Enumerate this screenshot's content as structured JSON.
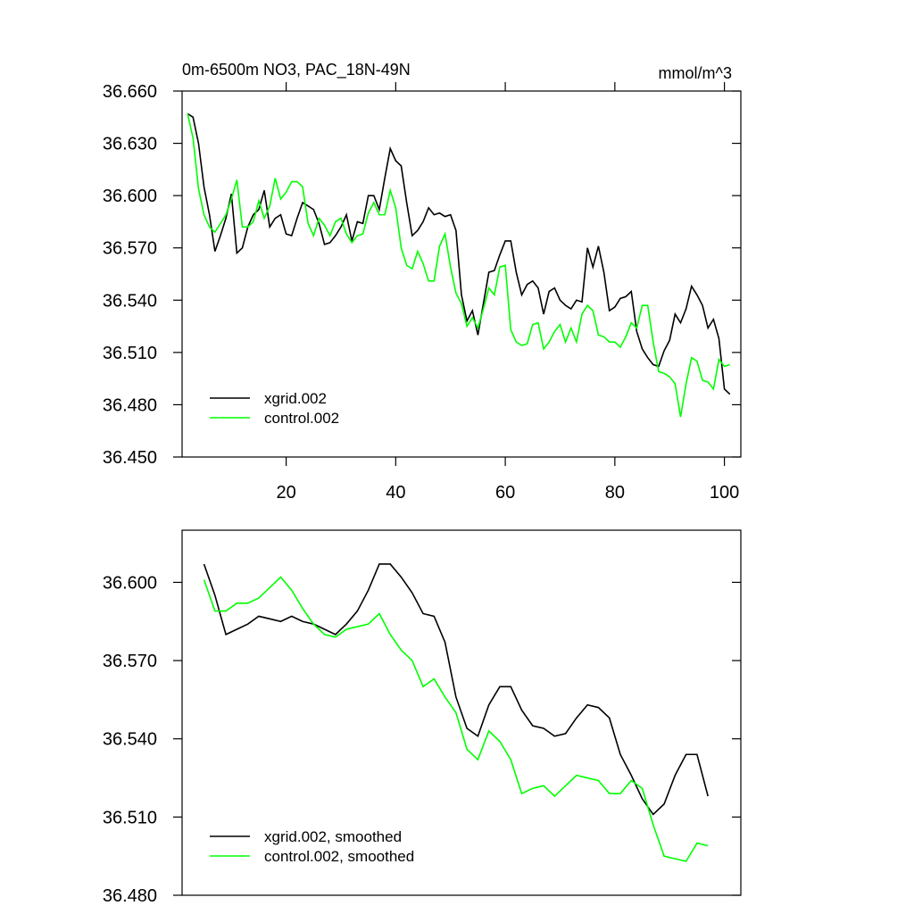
{
  "chart_data": [
    {
      "type": "line",
      "title": "0m-6500m NO3, PAC_18N-49N",
      "units": "mmol/m^3",
      "x": [
        2,
        3,
        4,
        5,
        6,
        7,
        8,
        9,
        10,
        11,
        12,
        13,
        14,
        15,
        16,
        17,
        18,
        19,
        20,
        21,
        22,
        23,
        24,
        25,
        26,
        27,
        28,
        29,
        30,
        31,
        32,
        33,
        34,
        35,
        36,
        37,
        38,
        39,
        40,
        41,
        42,
        43,
        44,
        45,
        46,
        47,
        48,
        49,
        50,
        51,
        52,
        53,
        54,
        55,
        56,
        57,
        58,
        59,
        60,
        61,
        62,
        63,
        64,
        65,
        66,
        67,
        68,
        69,
        70,
        71,
        72,
        73,
        74,
        75,
        76,
        77,
        78,
        79,
        80,
        81,
        82,
        83,
        84,
        85,
        86,
        87,
        88,
        89,
        90,
        91,
        92,
        93,
        94,
        95,
        96,
        97,
        98,
        99,
        100,
        101
      ],
      "series": [
        {
          "name": "xgrid.002",
          "color": "#000000",
          "values": [
            36.647,
            36.645,
            36.63,
            36.605,
            36.589,
            36.568,
            36.577,
            36.587,
            36.601,
            36.567,
            36.57,
            36.582,
            36.589,
            36.592,
            36.603,
            36.582,
            36.587,
            36.589,
            36.578,
            36.577,
            36.587,
            36.596,
            36.594,
            36.592,
            36.584,
            36.572,
            36.573,
            36.577,
            36.582,
            36.589,
            36.574,
            36.585,
            36.584,
            36.6,
            36.6,
            36.592,
            36.61,
            36.627,
            36.62,
            36.617,
            36.596,
            36.577,
            36.58,
            36.585,
            36.593,
            36.589,
            36.59,
            36.588,
            36.589,
            36.58,
            36.543,
            36.528,
            36.534,
            36.52,
            36.538,
            36.556,
            36.557,
            36.566,
            36.574,
            36.574,
            36.556,
            36.543,
            36.549,
            36.551,
            36.547,
            36.532,
            36.545,
            36.547,
            36.54,
            36.537,
            36.535,
            36.54,
            36.539,
            36.57,
            36.559,
            36.571,
            36.556,
            36.534,
            36.536,
            36.541,
            36.542,
            36.545,
            36.522,
            36.512,
            36.507,
            36.503,
            36.502,
            36.511,
            36.517,
            36.532,
            36.527,
            36.535,
            36.548,
            36.543,
            36.537,
            36.524,
            36.529,
            36.518,
            36.489,
            36.486
          ]
        },
        {
          "name": "control.002",
          "color": "#00ff00",
          "values": [
            36.647,
            36.633,
            36.604,
            36.589,
            36.582,
            36.579,
            36.584,
            36.589,
            36.598,
            36.609,
            36.582,
            36.582,
            36.585,
            36.597,
            36.587,
            36.594,
            36.61,
            36.598,
            36.602,
            36.608,
            36.608,
            36.605,
            36.584,
            36.577,
            36.587,
            36.583,
            36.577,
            36.585,
            36.587,
            36.578,
            36.573,
            36.577,
            36.578,
            36.59,
            36.596,
            36.589,
            36.589,
            36.603,
            36.593,
            36.57,
            36.56,
            36.558,
            36.568,
            36.561,
            36.551,
            36.551,
            36.571,
            36.578,
            36.559,
            36.544,
            36.538,
            36.525,
            36.53,
            36.524,
            36.535,
            36.547,
            36.543,
            36.559,
            36.56,
            36.523,
            36.516,
            36.514,
            36.515,
            36.526,
            36.527,
            36.512,
            36.516,
            36.522,
            36.526,
            36.516,
            36.524,
            36.516,
            36.532,
            36.537,
            36.534,
            36.52,
            36.519,
            36.516,
            36.516,
            36.513,
            36.519,
            36.527,
            36.524,
            36.537,
            36.537,
            36.516,
            36.499,
            36.498,
            36.496,
            36.492,
            36.473,
            36.492,
            36.507,
            36.505,
            36.494,
            36.493,
            36.489,
            36.506,
            36.502,
            36.503
          ]
        }
      ],
      "xlim": [
        1,
        103
      ],
      "xticks": [
        20,
        40,
        60,
        80,
        100
      ],
      "ylim": [
        36.45,
        36.66
      ],
      "yticks": [
        {
          "value": 36.45,
          "label": "36.450"
        },
        {
          "value": 36.48,
          "label": "36.480"
        },
        {
          "value": 36.51,
          "label": "36.510"
        },
        {
          "value": 36.54,
          "label": "36.540"
        },
        {
          "value": 36.57,
          "label": "36.570"
        },
        {
          "value": 36.6,
          "label": "36.600"
        },
        {
          "value": 36.63,
          "label": "36.630"
        },
        {
          "value": 36.66,
          "label": "36.660"
        }
      ],
      "legend": "lower left"
    },
    {
      "type": "line",
      "x": [
        5,
        7,
        9,
        11,
        13,
        15,
        17,
        19,
        21,
        23,
        25,
        27,
        29,
        31,
        33,
        35,
        37,
        39,
        41,
        43,
        45,
        47,
        49,
        51,
        53,
        55,
        57,
        59,
        61,
        63,
        65,
        67,
        69,
        71,
        73,
        75,
        77,
        79,
        81,
        83,
        85,
        87,
        89,
        91,
        93,
        95,
        97
      ],
      "series": [
        {
          "name": "xgrid.002, smoothed",
          "color": "#000000",
          "values": [
            36.607,
            36.595,
            36.58,
            36.582,
            36.584,
            36.587,
            36.586,
            36.585,
            36.587,
            36.585,
            36.584,
            36.582,
            36.58,
            36.584,
            36.589,
            36.597,
            36.607,
            36.607,
            36.602,
            36.596,
            36.588,
            36.587,
            36.577,
            36.556,
            36.544,
            36.541,
            36.553,
            36.56,
            36.56,
            36.551,
            36.545,
            36.544,
            36.541,
            36.542,
            36.548,
            36.553,
            36.552,
            36.548,
            36.534,
            36.526,
            36.517,
            36.511,
            36.515,
            36.526,
            36.534,
            36.534,
            36.518
          ]
        },
        {
          "name": "control.002, smoothed",
          "color": "#00ff00",
          "values": [
            36.601,
            36.589,
            36.589,
            36.592,
            36.592,
            36.594,
            36.598,
            36.602,
            36.597,
            36.59,
            36.584,
            36.58,
            36.579,
            36.582,
            36.583,
            36.584,
            36.588,
            36.58,
            36.574,
            36.57,
            36.56,
            36.563,
            36.556,
            36.55,
            36.536,
            36.532,
            36.543,
            36.539,
            36.532,
            36.519,
            36.521,
            36.522,
            36.518,
            36.522,
            36.526,
            36.525,
            36.524,
            36.519,
            36.519,
            36.524,
            36.521,
            36.507,
            36.495,
            36.494,
            36.493,
            36.5,
            36.499
          ]
        }
      ],
      "xlim": [
        1,
        103
      ],
      "ylim": [
        36.48,
        36.62
      ],
      "yticks": [
        {
          "value": 36.48,
          "label": "36.480"
        },
        {
          "value": 36.51,
          "label": "36.510"
        },
        {
          "value": 36.54,
          "label": "36.540"
        },
        {
          "value": 36.57,
          "label": "36.570"
        },
        {
          "value": 36.6,
          "label": "36.600"
        }
      ],
      "legend": "lower left"
    }
  ]
}
